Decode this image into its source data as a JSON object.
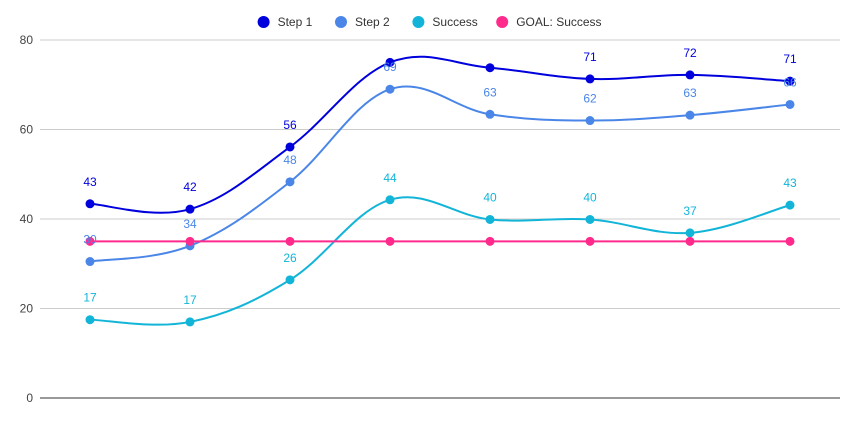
{
  "chart_data": {
    "type": "line",
    "title": "",
    "xlabel": "",
    "ylabel": "",
    "ylim": [
      0,
      80
    ],
    "yticks": [
      0,
      20,
      40,
      60,
      80
    ],
    "grid": true,
    "legend_position": "top",
    "categories": [
      "",
      "",
      "",
      "",
      "",
      "",
      "",
      ""
    ],
    "series": [
      {
        "name": "Step 1",
        "color": "#0000dd",
        "values": [
          43.4,
          42.2,
          56.1,
          75.0,
          73.8,
          71.3,
          72.2,
          70.8
        ],
        "labels": [
          "43",
          "42",
          "56",
          "",
          "",
          "71",
          "72",
          "71"
        ]
      },
      {
        "name": "Step 2",
        "color": "#4a86e8",
        "values": [
          30.5,
          34.0,
          48.3,
          69.0,
          63.4,
          62.0,
          63.2,
          65.6
        ],
        "labels": [
          "30",
          "34",
          "48",
          "69",
          "63",
          "62",
          "63",
          "66"
        ]
      },
      {
        "name": "Success",
        "color": "#12b5d8",
        "values": [
          17.5,
          17.0,
          26.4,
          44.3,
          39.9,
          39.9,
          36.9,
          43.1
        ],
        "labels": [
          "17",
          "17",
          "26",
          "44",
          "40",
          "40",
          "37",
          "43"
        ]
      },
      {
        "name": "GOAL: Success",
        "color": "#ff2a8c",
        "values": [
          35,
          35,
          35,
          35,
          35,
          35,
          35,
          35
        ],
        "labels": [
          "",
          "",
          "",
          "",
          "",
          "",
          "",
          ""
        ]
      }
    ]
  }
}
